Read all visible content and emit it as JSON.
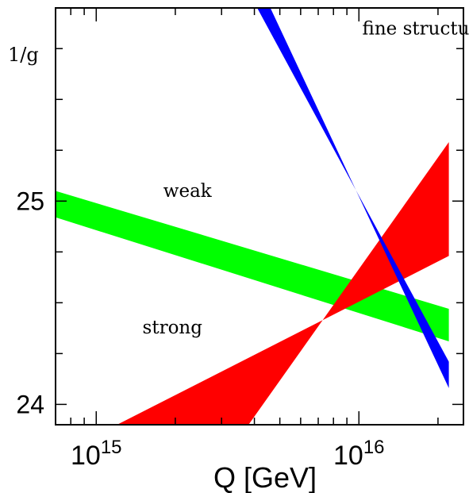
{
  "chart_data": {
    "type": "area",
    "title": "",
    "xlabel": "Q [GeV]",
    "ylabel": "1/g",
    "xscale": "log",
    "xlim": [
      700000000000000.0,
      2.5e+16
    ],
    "ylim": [
      23.9,
      25.95
    ],
    "x_ticks": [
      {
        "value": 1000000000000000.0,
        "label": "10",
        "exponent": "15"
      },
      {
        "value": 1e+16,
        "label": "10",
        "exponent": "16"
      }
    ],
    "y_ticks": [
      {
        "value": 24,
        "label": "24"
      },
      {
        "value": 25,
        "label": "25"
      }
    ],
    "grid": false,
    "series": [
      {
        "name": "weak",
        "color": "#00ff00",
        "x": [
          700000000000000.0,
          2.2e+16
        ],
        "upper": [
          25.05,
          24.47
        ],
        "lower": [
          24.92,
          24.31
        ]
      },
      {
        "name": "strong",
        "color": "#ff0000",
        "x_lower_edge": [
          1200000000000000.0,
          2.2e+16
        ],
        "lower": [
          23.9,
          24.73
        ],
        "x_upper_edge": [
          3800000000000000.0,
          2.2e+16
        ],
        "upper": [
          23.9,
          25.29
        ]
      },
      {
        "name": "fine structure",
        "color": "#0000ff",
        "x_top": [
          4100000000000000.0,
          2.2e+16
        ],
        "upper": [
          25.95,
          24.21
        ],
        "x_bottom": [
          4600000000000000.0,
          2.2e+16
        ],
        "lower": [
          25.95,
          24.08
        ]
      }
    ],
    "annotations": [
      {
        "text": "weak",
        "x": 1800000000000000.0,
        "y": 25.02
      },
      {
        "text": "strong",
        "x": 1500000000000000.0,
        "y": 24.35
      },
      {
        "text": "fine structure",
        "x": 1.03e+16,
        "y": 25.82
      }
    ]
  }
}
